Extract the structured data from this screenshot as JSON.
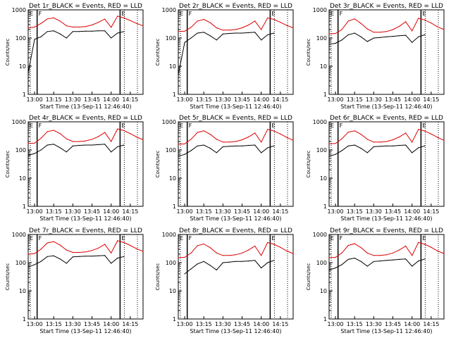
{
  "figure": {
    "ylabel": "Counts/sec",
    "xlabel": "Start Time (13-Sep-11 12:46:40)"
  },
  "chart_data": [
    {
      "type": "line",
      "title": "Det 1r_BLACK = Events, RED = LLD",
      "xlabel": "Start Time (13-Sep-11 12:46:40)",
      "ylabel": "Counts/sec",
      "yscale": "log",
      "ylim": [
        1,
        1000
      ],
      "yticks": [
        "1",
        "10",
        "100",
        "1000"
      ],
      "xticks": [
        "13:00",
        "13:15",
        "13:30",
        "13:45",
        "14:00",
        "14:15"
      ],
      "markers": [
        "F",
        "E"
      ],
      "grid": false,
      "legend": "none",
      "series": [
        {
          "name": "LLD",
          "color": "#dd0000",
          "x": [
            0,
            5,
            10,
            15,
            20,
            25,
            30,
            35,
            40,
            45,
            50,
            55,
            60,
            65,
            70,
            75,
            80,
            85,
            90
          ],
          "values": [
            230,
            245,
            330,
            480,
            520,
            400,
            270,
            245,
            245,
            255,
            290,
            360,
            470,
            240,
            600,
            520,
            420,
            330,
            270
          ]
        },
        {
          "name": "Events",
          "color": "#000000",
          "x": [
            0,
            5,
            10,
            15,
            20,
            25,
            30,
            35,
            40,
            45,
            50,
            55,
            60,
            65,
            70,
            75,
            80,
            85,
            90
          ],
          "values": [
            6,
            90,
            110,
            170,
            180,
            140,
            100,
            170,
            170,
            175,
            175,
            180,
            180,
            100,
            150,
            170,
            null,
            null,
            null
          ]
        }
      ]
    },
    {
      "type": "line",
      "title": "Det 2r_BLACK = Events, RED = LLD",
      "xlabel": "Start Time (13-Sep-11 12:46:40)",
      "ylabel": "Counts/sec",
      "yscale": "log",
      "ylim": [
        1,
        1000
      ],
      "yticks": [
        "1",
        "10",
        "100",
        "1000"
      ],
      "xticks": [
        "13:00",
        "13:15",
        "13:30",
        "13:45",
        "14:00",
        "14:15"
      ],
      "markers": [
        "F",
        "E"
      ],
      "grid": false,
      "legend": "none",
      "series": [
        {
          "name": "LLD",
          "color": "#dd0000",
          "x": [
            0,
            5,
            10,
            15,
            20,
            25,
            30,
            35,
            40,
            45,
            50,
            55,
            60,
            65,
            70,
            75,
            80,
            85,
            90
          ],
          "values": [
            170,
            175,
            240,
            400,
            460,
            350,
            230,
            190,
            190,
            200,
            230,
            290,
            400,
            200,
            520,
            460,
            360,
            280,
            230
          ]
        },
        {
          "name": "Events",
          "color": "#000000",
          "x": [
            0,
            5,
            10,
            15,
            20,
            25,
            30,
            35,
            40,
            45,
            50,
            55,
            60,
            65,
            70,
            75,
            80,
            85,
            90
          ],
          "values": [
            5,
            70,
            100,
            150,
            160,
            120,
            85,
            140,
            145,
            150,
            150,
            155,
            160,
            85,
            130,
            150,
            null,
            null,
            null
          ]
        }
      ]
    },
    {
      "type": "line",
      "title": "Det 3r_BLACK = Events, RED = LLD",
      "xlabel": "Start Time (13-Sep-11 12:46:40)",
      "ylabel": "Counts/sec",
      "yscale": "log",
      "ylim": [
        1,
        1000
      ],
      "yticks": [
        "1",
        "10",
        "100",
        "1000"
      ],
      "xticks": [
        "13:00",
        "13:15",
        "13:30",
        "13:45",
        "14:00",
        "14:15"
      ],
      "markers": [
        "F",
        "E"
      ],
      "grid": false,
      "legend": "none",
      "series": [
        {
          "name": "LLD",
          "color": "#dd0000",
          "x": [
            0,
            5,
            10,
            15,
            20,
            25,
            30,
            35,
            40,
            45,
            50,
            55,
            60,
            65,
            70,
            75,
            80,
            85,
            90
          ],
          "values": [
            140,
            145,
            200,
            400,
            480,
            330,
            210,
            160,
            160,
            170,
            200,
            260,
            380,
            180,
            500,
            440,
            340,
            250,
            200
          ]
        },
        {
          "name": "Events",
          "color": "#000000",
          "x": [
            0,
            5,
            10,
            15,
            20,
            25,
            30,
            35,
            40,
            45,
            50,
            55,
            60,
            65,
            70,
            75,
            80,
            85,
            90
          ],
          "values": [
            60,
            65,
            85,
            130,
            150,
            110,
            75,
            100,
            105,
            110,
            115,
            120,
            125,
            70,
            110,
            130,
            null,
            null,
            null
          ]
        }
      ]
    },
    {
      "type": "line",
      "title": "Det 4r_BLACK = Events, RED = LLD",
      "xlabel": "Start Time (13-Sep-11 12:46:40)",
      "ylabel": "Counts/sec",
      "yscale": "log",
      "ylim": [
        1,
        1000
      ],
      "yticks": [
        "1",
        "10",
        "100",
        "1000"
      ],
      "xticks": [
        "13:00",
        "13:15",
        "13:30",
        "13:45",
        "14:00",
        "14:15"
      ],
      "markers": [
        "F",
        "E"
      ],
      "grid": false,
      "legend": "none",
      "series": [
        {
          "name": "LLD",
          "color": "#dd0000",
          "x": [
            0,
            5,
            10,
            15,
            20,
            25,
            30,
            35,
            40,
            45,
            50,
            55,
            60,
            65,
            70,
            75,
            80,
            85,
            90
          ],
          "values": [
            170,
            175,
            260,
            450,
            500,
            380,
            250,
            200,
            200,
            210,
            240,
            300,
            420,
            200,
            560,
            490,
            380,
            290,
            230
          ]
        },
        {
          "name": "Events",
          "color": "#000000",
          "x": [
            0,
            5,
            10,
            15,
            20,
            25,
            30,
            35,
            40,
            45,
            50,
            55,
            60,
            65,
            70,
            75,
            80,
            85,
            90
          ],
          "values": [
            65,
            75,
            100,
            150,
            160,
            120,
            85,
            140,
            145,
            150,
            150,
            155,
            160,
            85,
            130,
            150,
            null,
            null,
            null
          ]
        }
      ]
    },
    {
      "type": "line",
      "title": "Det 5r_BLACK = Events, RED = LLD",
      "xlabel": "Start Time (13-Sep-11 12:46:40)",
      "ylabel": "Counts/sec",
      "yscale": "log",
      "ylim": [
        1,
        1000
      ],
      "yticks": [
        "1",
        "10",
        "100",
        "1000"
      ],
      "xticks": [
        "13:00",
        "13:15",
        "13:30",
        "13:45",
        "14:00",
        "14:15"
      ],
      "markers": [
        "F",
        "E"
      ],
      "grid": false,
      "legend": "none",
      "series": [
        {
          "name": "LLD",
          "color": "#dd0000",
          "x": [
            0,
            5,
            10,
            15,
            20,
            25,
            30,
            35,
            40,
            45,
            50,
            55,
            60,
            65,
            70,
            75,
            80,
            85,
            90
          ],
          "values": [
            160,
            165,
            240,
            420,
            480,
            360,
            240,
            190,
            190,
            200,
            230,
            290,
            400,
            190,
            540,
            470,
            370,
            280,
            220
          ]
        },
        {
          "name": "Events",
          "color": "#000000",
          "x": [
            0,
            5,
            10,
            15,
            20,
            25,
            30,
            35,
            40,
            45,
            50,
            55,
            60,
            65,
            70,
            75,
            80,
            85,
            90
          ],
          "values": [
            60,
            70,
            95,
            140,
            150,
            115,
            80,
            130,
            135,
            140,
            140,
            145,
            150,
            80,
            120,
            140,
            null,
            null,
            null
          ]
        }
      ]
    },
    {
      "type": "line",
      "title": "Det 6r_BLACK = Events, RED = LLD",
      "xlabel": "Start Time (13-Sep-11 12:46:40)",
      "ylabel": "Counts/sec",
      "yscale": "log",
      "ylim": [
        1,
        1000
      ],
      "yticks": [
        "1",
        "10",
        "100",
        "1000"
      ],
      "xticks": [
        "13:00",
        "13:15",
        "13:30",
        "13:45",
        "14:00",
        "14:15"
      ],
      "markers": [
        "F",
        "E"
      ],
      "grid": false,
      "legend": "none",
      "series": [
        {
          "name": "LLD",
          "color": "#dd0000",
          "x": [
            0,
            5,
            10,
            15,
            20,
            25,
            30,
            35,
            40,
            45,
            50,
            55,
            60,
            65,
            70,
            75,
            80,
            85,
            90
          ],
          "values": [
            165,
            170,
            250,
            430,
            480,
            360,
            240,
            190,
            190,
            200,
            230,
            290,
            400,
            190,
            540,
            470,
            370,
            280,
            220
          ]
        },
        {
          "name": "Events",
          "color": "#000000",
          "x": [
            0,
            5,
            10,
            15,
            20,
            25,
            30,
            35,
            40,
            45,
            50,
            55,
            60,
            65,
            70,
            75,
            80,
            85,
            90
          ],
          "values": [
            60,
            70,
            95,
            140,
            150,
            115,
            80,
            130,
            135,
            140,
            140,
            145,
            150,
            80,
            120,
            140,
            null,
            null,
            null
          ]
        }
      ]
    },
    {
      "type": "line",
      "title": "Det 7r_BLACK = Events, RED = LLD",
      "xlabel": "Start Time (13-Sep-11 12:46:40)",
      "ylabel": "Counts/sec",
      "yscale": "log",
      "ylim": [
        1,
        1000
      ],
      "yticks": [
        "1",
        "10",
        "100",
        "1000"
      ],
      "xticks": [
        "13:00",
        "13:15",
        "13:30",
        "13:45",
        "14:00",
        "14:15"
      ],
      "markers": [
        "F",
        "E"
      ],
      "grid": false,
      "legend": "none",
      "series": [
        {
          "name": "LLD",
          "color": "#dd0000",
          "x": [
            0,
            5,
            10,
            15,
            20,
            25,
            30,
            35,
            40,
            45,
            50,
            55,
            60,
            65,
            70,
            75,
            80,
            85,
            90
          ],
          "values": [
            200,
            210,
            300,
            500,
            560,
            420,
            280,
            230,
            230,
            240,
            270,
            330,
            450,
            220,
            600,
            520,
            410,
            310,
            250
          ]
        },
        {
          "name": "Events",
          "color": "#000000",
          "x": [
            0,
            5,
            10,
            15,
            20,
            25,
            30,
            35,
            40,
            45,
            50,
            55,
            60,
            65,
            70,
            75,
            80,
            85,
            90
          ],
          "values": [
            70,
            85,
            110,
            165,
            175,
            135,
            95,
            160,
            165,
            170,
            170,
            175,
            180,
            95,
            145,
            165,
            null,
            null,
            null
          ]
        }
      ]
    },
    {
      "type": "line",
      "title": "Det 8r_BLACK = Events, RED = LLD",
      "xlabel": "Start Time (13-Sep-11 12:46:40)",
      "ylabel": "Counts/sec",
      "yscale": "log",
      "ylim": [
        1,
        1000
      ],
      "yticks": [
        "1",
        "10",
        "100",
        "1000"
      ],
      "xticks": [
        "13:00",
        "13:15",
        "13:30",
        "13:45",
        "14:00",
        "14:15"
      ],
      "markers": [
        "F",
        "E"
      ],
      "grid": false,
      "legend": "none",
      "series": [
        {
          "name": "LLD",
          "color": "#dd0000",
          "x": [
            0,
            5,
            10,
            15,
            20,
            25,
            30,
            35,
            40,
            45,
            50,
            55,
            60,
            65,
            70,
            75,
            80,
            85,
            90
          ],
          "values": [
            150,
            155,
            220,
            400,
            460,
            340,
            220,
            180,
            180,
            190,
            220,
            280,
            390,
            180,
            520,
            450,
            350,
            260,
            210
          ]
        },
        {
          "name": "Events",
          "color": "#000000",
          "x": [
            0,
            5,
            10,
            15,
            20,
            25,
            30,
            35,
            40,
            45,
            50,
            55,
            60,
            65,
            70,
            75,
            80,
            85,
            90
          ],
          "values": [
            null,
            40,
            60,
            90,
            110,
            80,
            55,
            100,
            105,
            110,
            110,
            115,
            120,
            65,
            100,
            120,
            null,
            null,
            null
          ]
        }
      ]
    },
    {
      "type": "line",
      "title": "Det 9r_BLACK = Events, RED = LLD",
      "xlabel": "Start Time (13-Sep-11 12:46:40)",
      "ylabel": "Counts/sec",
      "yscale": "log",
      "ylim": [
        1,
        1000
      ],
      "yticks": [
        "1",
        "10",
        "100",
        "1000"
      ],
      "xticks": [
        "13:00",
        "13:15",
        "13:30",
        "13:45",
        "14:00",
        "14:15"
      ],
      "markers": [
        "F",
        "E"
      ],
      "grid": false,
      "legend": "none",
      "series": [
        {
          "name": "LLD",
          "color": "#dd0000",
          "x": [
            0,
            5,
            10,
            15,
            20,
            25,
            30,
            35,
            40,
            45,
            50,
            55,
            60,
            65,
            70,
            75,
            80,
            85,
            90
          ],
          "values": [
            150,
            155,
            220,
            410,
            470,
            340,
            220,
            180,
            180,
            190,
            220,
            280,
            390,
            180,
            520,
            450,
            350,
            260,
            210
          ]
        },
        {
          "name": "Events",
          "color": "#000000",
          "x": [
            0,
            5,
            10,
            15,
            20,
            25,
            30,
            35,
            40,
            45,
            50,
            55,
            60,
            65,
            70,
            75,
            80,
            85,
            90
          ],
          "values": [
            55,
            65,
            85,
            130,
            145,
            110,
            75,
            110,
            115,
            120,
            125,
            130,
            135,
            75,
            115,
            135,
            null,
            null,
            null
          ]
        }
      ]
    }
  ]
}
